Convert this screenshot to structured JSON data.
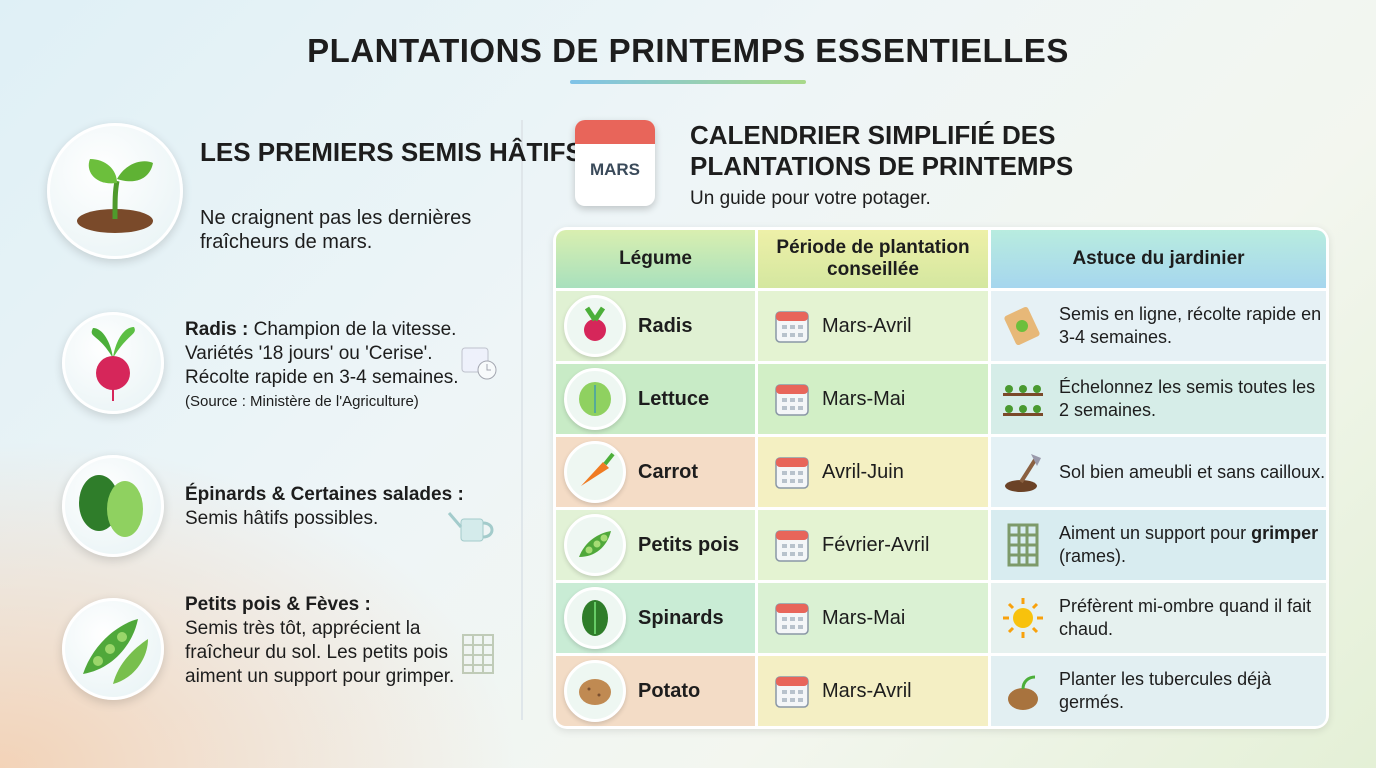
{
  "title": "PLANTATIONS DE PRINTEMPS ESSENTIELLES",
  "left": {
    "heading": "LES PREMIERS SEMIS HÂTIFS",
    "subtitle": "Ne craignent pas les dernières fraîcheurs de mars.",
    "items": [
      {
        "name": "Radis :",
        "text": "Champion de la vitesse. Variétés '18 jours' ou 'Cerise'. Récolte rapide en 3-4 semaines.",
        "source": "(Source : Ministère de l'Agriculture)",
        "icon": "radish-icon"
      },
      {
        "name": "Épinards & Certaines salades :",
        "text": "Semis hâtifs possibles.",
        "icon": "spinach-lettuce-icon"
      },
      {
        "name": "Petits pois & Fèves :",
        "text": "Semis très tôt, apprécient la fraîcheur du sol. Les petits pois aiment un support pour grimper.",
        "icon": "peas-icon"
      }
    ]
  },
  "right": {
    "calendar_label": "MARS",
    "heading_line1": "CALENDRIER SIMPLIFIÉ DES",
    "heading_line2": "PLANTATIONS DE PRINTEMPS",
    "subtitle": "Un guide pour votre potager.",
    "table": {
      "headers": [
        "Légume",
        "Période de plantation conseillée",
        "Astuce du jardinier"
      ],
      "rows": [
        {
          "vegetable": "Radis",
          "period": "Mars-Avril",
          "tip": "Semis en ligne, récolte rapide en 3-4 semaines.",
          "tip_pre": "",
          "tip_bold": "",
          "tip_post": ""
        },
        {
          "vegetable": "Lettuce",
          "period": "Mars-Mai",
          "tip": "Échelonnez les semis toutes les 2 semaines."
        },
        {
          "vegetable": "Carrot",
          "period": "Avril-Juin",
          "tip": "Sol bien ameubli et sans cailloux."
        },
        {
          "vegetable": "Petits pois",
          "period": "Février-Avril",
          "tip_pre": "Aiment un support pour ",
          "tip_bold": "grimper",
          "tip_post": " (rames)."
        },
        {
          "vegetable": "Spinards",
          "period": "Mars-Mai",
          "tip": "Préfèrent mi-ombre quand il fait chaud."
        },
        {
          "vegetable": "Potato",
          "period": "Mars-Avril",
          "tip": "Planter les tubercules déjà germés."
        }
      ]
    }
  }
}
